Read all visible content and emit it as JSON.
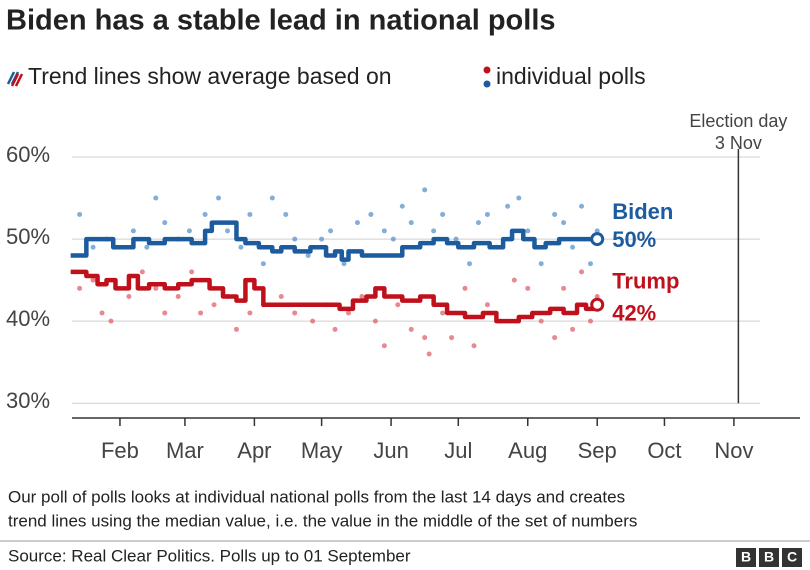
{
  "chart_data": {
    "type": "line",
    "title": "Biden has a stable lead in national polls",
    "subtitle": [
      "Trend lines show average based on",
      "individual polls"
    ],
    "xlim": [
      10.6,
      335.5
    ],
    "ylim": [
      28.2,
      60
    ],
    "xticks": [
      {
        "value": 32,
        "label": "Feb"
      },
      {
        "value": 61,
        "label": "Mar"
      },
      {
        "value": 92,
        "label": "Apr"
      },
      {
        "value": 122,
        "label": "May"
      },
      {
        "value": 153,
        "label": "Jun"
      },
      {
        "value": 183,
        "label": "Jul"
      },
      {
        "value": 214,
        "label": "Aug"
      },
      {
        "value": 245,
        "label": "Sep"
      },
      {
        "value": 275,
        "label": "Oct"
      },
      {
        "value": 306,
        "label": "Nov"
      }
    ],
    "yticks": [
      {
        "value": 30,
        "label": "30%"
      },
      {
        "value": 40,
        "label": "40%"
      },
      {
        "value": 50,
        "label": "50%"
      },
      {
        "value": 60,
        "label": "60%"
      }
    ],
    "grid": true,
    "election_day": {
      "x": 308,
      "label": [
        "Election day",
        "3 Nov"
      ]
    },
    "series": [
      {
        "name": "Biden",
        "color": "#1c5b9d",
        "x": [
          10,
          17,
          24,
          29,
          33,
          38,
          45,
          52,
          58,
          64,
          70,
          73,
          80,
          84,
          88,
          94,
          100,
          104,
          110,
          117,
          124,
          128,
          131,
          134,
          140,
          152,
          158,
          166,
          172,
          178,
          183,
          190,
          197,
          203,
          207,
          212,
          217,
          222,
          228,
          236,
          245
        ],
        "values": [
          48,
          50,
          50,
          49,
          49,
          50,
          49.5,
          50,
          50,
          49.5,
          51,
          52,
          52,
          50,
          49.5,
          49,
          48.5,
          49,
          48.5,
          49,
          48,
          48.5,
          47.5,
          48.5,
          48,
          48,
          49,
          49.5,
          50,
          49.5,
          49,
          49.5,
          49,
          50,
          51,
          50,
          49,
          49.5,
          50,
          50,
          50
        ],
        "value_labels": [
          null,
          null,
          null,
          null,
          null,
          null,
          null,
          null,
          null,
          null,
          null,
          null,
          null,
          null,
          null,
          null,
          null,
          null,
          null,
          null,
          null,
          null,
          null,
          null,
          null,
          null,
          null,
          null,
          null,
          null,
          null,
          null,
          null,
          null,
          null,
          null,
          null,
          null,
          null,
          null,
          "50%"
        ]
      },
      {
        "name": "Trump",
        "color": "#c0101c",
        "x": [
          10,
          17,
          22,
          26,
          30,
          36,
          40,
          45,
          52,
          58,
          64,
          72,
          78,
          84,
          88,
          92,
          96,
          108,
          124,
          130,
          136,
          142,
          146,
          150,
          158,
          166,
          172,
          178,
          186,
          194,
          200,
          210,
          216,
          224,
          230,
          236,
          240,
          245
        ],
        "values": [
          46,
          45.5,
          44.5,
          45,
          44,
          45.5,
          44,
          44.5,
          44,
          44.5,
          45,
          44,
          43,
          42.5,
          45,
          44,
          42,
          42,
          42,
          41.5,
          42.5,
          43,
          44,
          43,
          42.5,
          43,
          42,
          41,
          40.5,
          41,
          40,
          40.5,
          41,
          41.5,
          41,
          42,
          41.5,
          42
        ],
        "value_labels": [
          null,
          null,
          null,
          null,
          null,
          null,
          null,
          null,
          null,
          null,
          null,
          null,
          null,
          null,
          null,
          null,
          null,
          null,
          null,
          null,
          null,
          null,
          null,
          null,
          null,
          null,
          null,
          null,
          null,
          null,
          null,
          null,
          null,
          null,
          null,
          null,
          null,
          "42%"
        ]
      }
    ],
    "polls": [
      {
        "color": "#5b93c9",
        "x": [
          14,
          20,
          26,
          30,
          38,
          44,
          48,
          52,
          58,
          63,
          70,
          76,
          80,
          86,
          90,
          96,
          100,
          106,
          110,
          116,
          122,
          126,
          132,
          138,
          144,
          150,
          154,
          158,
          162,
          168,
          172,
          176,
          182,
          188,
          192,
          196,
          200,
          205,
          210,
          214,
          220,
          226,
          230,
          234,
          238,
          242,
          245
        ],
        "values": [
          53,
          49,
          50,
          49,
          51,
          49,
          55,
          52,
          50,
          51,
          53,
          55,
          51,
          49,
          53,
          47,
          55,
          53,
          50,
          48,
          50,
          51,
          47,
          52,
          53,
          51,
          50,
          54,
          52,
          56,
          51,
          53,
          50,
          47,
          52,
          53,
          49,
          54,
          55,
          51,
          47,
          53,
          52,
          49,
          54,
          47,
          51
        ]
      },
      {
        "color": "#e0606a",
        "x": [
          14,
          20,
          24,
          28,
          36,
          42,
          48,
          52,
          58,
          64,
          68,
          74,
          80,
          84,
          90,
          96,
          104,
          110,
          118,
          124,
          128,
          134,
          140,
          146,
          150,
          156,
          162,
          168,
          170,
          176,
          180,
          186,
          190,
          196,
          202,
          208,
          214,
          220,
          226,
          230,
          234,
          238,
          242,
          245
        ],
        "values": [
          44,
          45,
          41,
          40,
          43,
          46,
          44,
          41,
          43,
          46,
          41,
          42,
          43,
          39,
          41,
          42,
          43,
          41,
          40,
          42,
          39,
          41,
          43,
          40,
          37,
          42,
          39,
          38,
          36,
          41,
          38,
          44,
          37,
          42,
          40,
          45,
          44,
          40,
          38,
          44,
          39,
          46,
          40,
          43
        ]
      }
    ],
    "note": [
      "Our poll of polls looks at individual national polls from the last 14 days and creates",
      "trend lines using the median value, i.e. the value in the middle of the set of numbers"
    ],
    "source": "Source: Real Clear Politics. Polls up to 01 September",
    "logo": [
      "B",
      "B",
      "C"
    ]
  }
}
